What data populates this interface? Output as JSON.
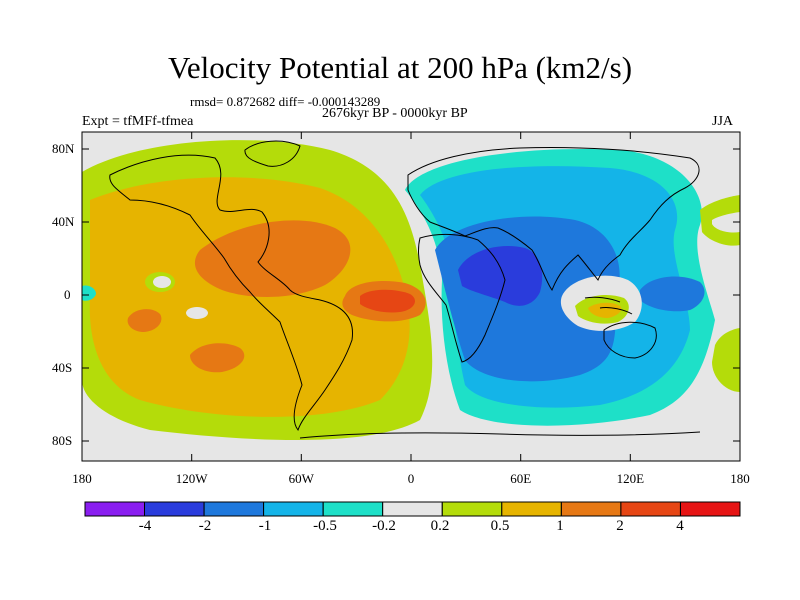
{
  "title": "Velocity Potential at 200 hPa (km2/s)",
  "stats_line": "rmsd= 0.872682  diff= -0.000143289",
  "period_line": "2676kyr BP - 0000kyr BP",
  "experiment": "Expt = tfMFf-tfmea",
  "season": "JJA",
  "lat_labels": [
    "80N",
    "40N",
    "0",
    "40S",
    "80S"
  ],
  "lon_labels": [
    "180",
    "120W",
    "60W",
    "0",
    "60E",
    "120E",
    "180"
  ],
  "colorbar": {
    "labels": [
      "-4",
      "-2",
      "-1",
      "-0.5",
      "-0.2",
      "0.2",
      "0.5",
      "1",
      "2",
      "4"
    ],
    "colors": [
      "#8a1ef0",
      "#2a3cdc",
      "#1e78dc",
      "#14b4e8",
      "#1ee0c8",
      "#e6e6e6",
      "#b4dc0a",
      "#e6b400",
      "#e67814",
      "#e64614",
      "#e61414"
    ]
  }
}
